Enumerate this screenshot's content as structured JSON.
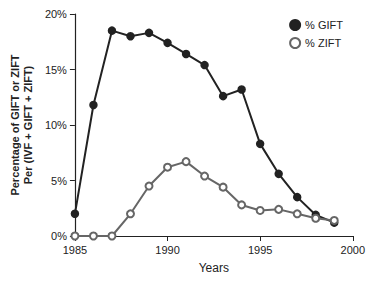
{
  "chart_data": {
    "type": "line",
    "x_label": "Years",
    "y_label": "Percentage of GIFT or ZIFT\nPer (IVF + GIFT + ZIFT)",
    "x": [
      1985,
      1986,
      1987,
      1988,
      1989,
      1990,
      1991,
      1992,
      1993,
      1994,
      1995,
      1996,
      1997,
      1998,
      1999
    ],
    "series": [
      {
        "name": "% GIFT",
        "color": "#222222",
        "marker": "circle",
        "values": [
          2,
          11.8,
          18.5,
          18,
          18.3,
          17.4,
          16.4,
          15.4,
          12.6,
          13.2,
          8.3,
          5.6,
          3.5,
          1.9,
          1.2
        ]
      },
      {
        "name": "% ZIFT",
        "color": "#666666",
        "marker": "open_circle",
        "values": [
          0,
          0,
          0,
          2,
          4.5,
          6.2,
          6.7,
          5.4,
          4.4,
          2.8,
          2.3,
          2.4,
          2,
          1.6,
          1.4
        ]
      }
    ],
    "xlim": [
      1985,
      2000
    ],
    "xticks": [
      1985,
      1990,
      1995,
      2000
    ],
    "ylim": [
      0,
      20
    ],
    "yticks": [
      {
        "value": 0,
        "label": "0%"
      },
      {
        "value": 5,
        "label": "5%"
      },
      {
        "value": 10,
        "label": "10%"
      },
      {
        "value": 15,
        "label": "15%"
      },
      {
        "value": 20,
        "label": "20%"
      }
    ],
    "grid": false,
    "legend": "top-right"
  }
}
